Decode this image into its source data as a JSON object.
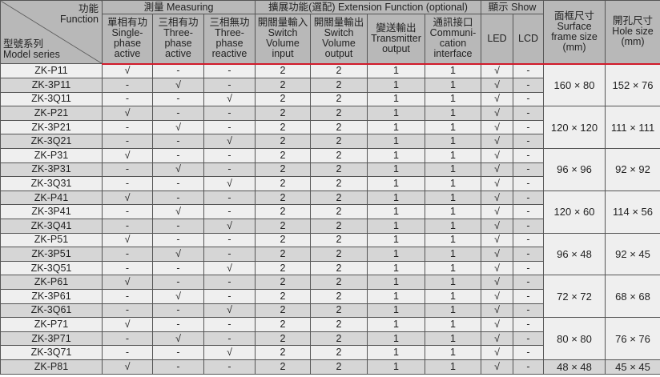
{
  "header": {
    "corner_function_zh": "功能",
    "corner_function_en": "Function",
    "corner_model_zh": "型號系列",
    "corner_model_en": "Model series",
    "group_measuring": "測量 Measuring",
    "group_extension": "擴展功能(選配) Extension Function (optional)",
    "group_show": "顯示 Show",
    "columns": [
      {
        "zh": "單相有功",
        "en": "Single-phase active"
      },
      {
        "zh": "三相有功",
        "en": "Three-phase active"
      },
      {
        "zh": "三相無功",
        "en": "Three-phase reactive"
      },
      {
        "zh": "開關量輸入",
        "en": "Switch Volume input"
      },
      {
        "zh": "開關量輸出",
        "en": "Switch Volume output"
      },
      {
        "zh": "變送輸出",
        "en": "Transmitter output"
      },
      {
        "zh": "通訊接口",
        "en": "Communi-cation interface"
      },
      {
        "zh": "",
        "en": "LED"
      },
      {
        "zh": "",
        "en": "LCD"
      },
      {
        "zh": "面框尺寸",
        "en": "Surface frame size (mm)"
      },
      {
        "zh": "開孔尺寸",
        "en": "Hole size (mm)"
      }
    ]
  },
  "rows": [
    [
      "ZK-P11",
      "√",
      "-",
      "-",
      "2",
      "2",
      "1",
      "1",
      "√",
      "-"
    ],
    [
      "ZK-3P11",
      "-",
      "√",
      "-",
      "2",
      "2",
      "1",
      "1",
      "√",
      "-"
    ],
    [
      "ZK-3Q11",
      "-",
      "-",
      "√",
      "2",
      "2",
      "1",
      "1",
      "√",
      "-"
    ],
    [
      "ZK-P21",
      "√",
      "-",
      "-",
      "2",
      "2",
      "1",
      "1",
      "√",
      "-"
    ],
    [
      "ZK-3P21",
      "-",
      "√",
      "-",
      "2",
      "2",
      "1",
      "1",
      "√",
      "-"
    ],
    [
      "ZK-3Q21",
      "-",
      "-",
      "√",
      "2",
      "2",
      "1",
      "1",
      "√",
      "-"
    ],
    [
      "ZK-P31",
      "√",
      "-",
      "-",
      "2",
      "2",
      "1",
      "1",
      "√",
      "-"
    ],
    [
      "ZK-3P31",
      "-",
      "√",
      "-",
      "2",
      "2",
      "1",
      "1",
      "√",
      "-"
    ],
    [
      "ZK-3Q31",
      "-",
      "-",
      "√",
      "2",
      "2",
      "1",
      "1",
      "√",
      "-"
    ],
    [
      "ZK-P41",
      "√",
      "-",
      "-",
      "2",
      "2",
      "1",
      "1",
      "√",
      "-"
    ],
    [
      "ZK-3P41",
      "-",
      "√",
      "-",
      "2",
      "2",
      "1",
      "1",
      "√",
      "-"
    ],
    [
      "ZK-3Q41",
      "-",
      "-",
      "√",
      "2",
      "2",
      "1",
      "1",
      "√",
      "-"
    ],
    [
      "ZK-P51",
      "√",
      "-",
      "-",
      "2",
      "2",
      "1",
      "1",
      "√",
      "-"
    ],
    [
      "ZK-3P51",
      "-",
      "√",
      "-",
      "2",
      "2",
      "1",
      "1",
      "√",
      "-"
    ],
    [
      "ZK-3Q51",
      "-",
      "-",
      "√",
      "2",
      "2",
      "1",
      "1",
      "√",
      "-"
    ],
    [
      "ZK-P61",
      "√",
      "-",
      "-",
      "2",
      "2",
      "1",
      "1",
      "√",
      "-"
    ],
    [
      "ZK-3P61",
      "-",
      "√",
      "-",
      "2",
      "2",
      "1",
      "1",
      "√",
      "-"
    ],
    [
      "ZK-3Q61",
      "-",
      "-",
      "√",
      "2",
      "2",
      "1",
      "1",
      "√",
      "-"
    ],
    [
      "ZK-P71",
      "√",
      "-",
      "-",
      "2",
      "2",
      "1",
      "1",
      "√",
      "-"
    ],
    [
      "ZK-3P71",
      "-",
      "√",
      "-",
      "2",
      "2",
      "1",
      "1",
      "√",
      "-"
    ],
    [
      "ZK-3Q71",
      "-",
      "-",
      "√",
      "2",
      "2",
      "1",
      "1",
      "√",
      "-"
    ],
    [
      "ZK-P81",
      "√",
      "-",
      "-",
      "2",
      "2",
      "1",
      "1",
      "√",
      "-"
    ]
  ],
  "sizes": [
    {
      "frame": "160 × 80",
      "hole": "152 × 76",
      "span": 3
    },
    {
      "frame": "120 × 120",
      "hole": "111 × 111",
      "span": 3
    },
    {
      "frame": "96 × 96",
      "hole": "92 × 92",
      "span": 3
    },
    {
      "frame": "120 × 60",
      "hole": "114 × 56",
      "span": 3
    },
    {
      "frame": "96 × 48",
      "hole": "92 × 45",
      "span": 3
    },
    {
      "frame": "72 × 72",
      "hole": "68 × 68",
      "span": 3
    },
    {
      "frame": "80 × 80",
      "hole": "76 × 76",
      "span": 3
    },
    {
      "frame": "48 × 48",
      "hole": "45 × 45",
      "span": 1
    }
  ]
}
